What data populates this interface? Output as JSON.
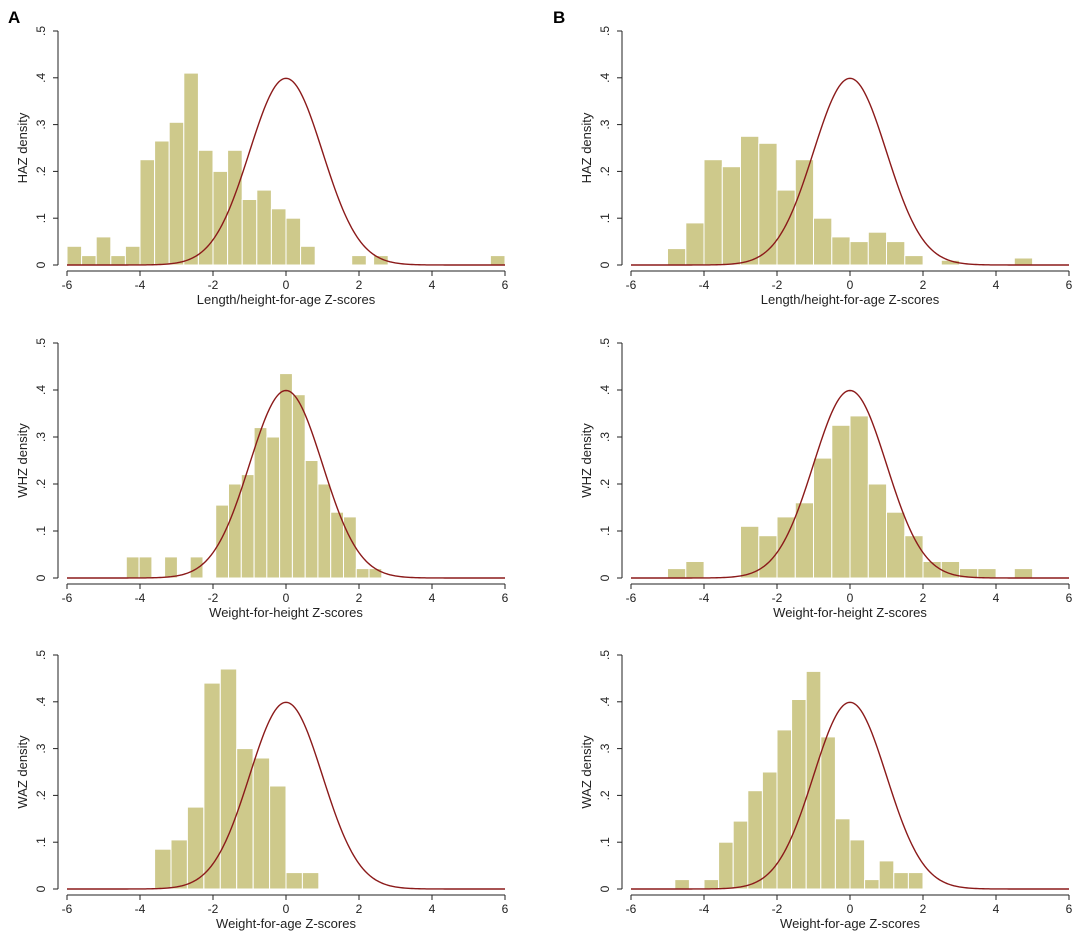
{
  "panel_labels": [
    "A",
    "B"
  ],
  "colors": {
    "bar_fill": "#CEC98B",
    "bar_stroke": "#ffffff",
    "curve": "#8B1A1A",
    "axis": "#222222"
  },
  "chart_data": [
    {
      "type": "bar",
      "panel": "A",
      "row": 0,
      "xlabel": "Length/height-for-age Z-scores",
      "ylabel": "HAZ density",
      "xlim": [
        -6,
        6
      ],
      "ylim": [
        0,
        0.5
      ],
      "xticks": [
        -6,
        -4,
        -2,
        0,
        2,
        4,
        6
      ],
      "yticks": [
        0,
        0.1,
        0.2,
        0.3,
        0.4,
        0.5
      ],
      "ytick_labels": [
        "0",
        ".1",
        ".2",
        ".3",
        ".4",
        ".5"
      ],
      "bin_width": 0.4,
      "bins": [
        [
          -5.8,
          0.04
        ],
        [
          -5.4,
          0.02
        ],
        [
          -5.0,
          0.06
        ],
        [
          -4.6,
          0.02
        ],
        [
          -4.2,
          0.04
        ],
        [
          -3.8,
          0.225
        ],
        [
          -3.4,
          0.265
        ],
        [
          -3.0,
          0.305
        ],
        [
          -2.6,
          0.41
        ],
        [
          -2.2,
          0.245
        ],
        [
          -1.8,
          0.2
        ],
        [
          -1.4,
          0.245
        ],
        [
          -1.0,
          0.14
        ],
        [
          -0.6,
          0.16
        ],
        [
          -0.2,
          0.12
        ],
        [
          0.2,
          0.1
        ],
        [
          0.6,
          0.04
        ],
        [
          2.0,
          0.02
        ],
        [
          2.6,
          0.02
        ],
        [
          5.8,
          0.02
        ]
      ],
      "curve": {
        "name": "normal density",
        "mean": 0,
        "sd": 1
      }
    },
    {
      "type": "bar",
      "panel": "B",
      "row": 0,
      "xlabel": "Length/height-for-age Z-scores",
      "ylabel": "HAZ density",
      "xlim": [
        -6,
        6
      ],
      "ylim": [
        0,
        0.5
      ],
      "xticks": [
        -6,
        -4,
        -2,
        0,
        2,
        4,
        6
      ],
      "yticks": [
        0,
        0.1,
        0.2,
        0.3,
        0.4,
        0.5
      ],
      "ytick_labels": [
        "0",
        ".1",
        ".2",
        ".3",
        ".4",
        ".5"
      ],
      "bin_width": 0.5,
      "bins": [
        [
          -4.75,
          0.035
        ],
        [
          -4.25,
          0.09
        ],
        [
          -3.75,
          0.225
        ],
        [
          -3.25,
          0.21
        ],
        [
          -2.75,
          0.275
        ],
        [
          -2.25,
          0.26
        ],
        [
          -1.75,
          0.16
        ],
        [
          -1.25,
          0.225
        ],
        [
          -0.75,
          0.1
        ],
        [
          -0.25,
          0.06
        ],
        [
          0.25,
          0.05
        ],
        [
          0.75,
          0.07
        ],
        [
          1.25,
          0.05
        ],
        [
          1.75,
          0.02
        ],
        [
          2.75,
          0.01
        ],
        [
          4.75,
          0.015
        ]
      ],
      "curve": {
        "name": "normal density",
        "mean": 0,
        "sd": 1
      }
    },
    {
      "type": "bar",
      "panel": "A",
      "row": 1,
      "xlabel": "Weight-for-height Z-scores",
      "ylabel": "WHZ density",
      "xlim": [
        -6,
        6
      ],
      "ylim": [
        0,
        0.5
      ],
      "xticks": [
        -6,
        -4,
        -2,
        0,
        2,
        4,
        6
      ],
      "yticks": [
        0,
        0.1,
        0.2,
        0.3,
        0.4,
        0.5
      ],
      "ytick_labels": [
        "0",
        ".1",
        ".2",
        ".3",
        ".4",
        ".5"
      ],
      "bin_width": 0.35,
      "bins": [
        [
          -4.2,
          0.045
        ],
        [
          -3.85,
          0.045
        ],
        [
          -3.15,
          0.045
        ],
        [
          -2.45,
          0.045
        ],
        [
          -1.75,
          0.155
        ],
        [
          -1.4,
          0.2
        ],
        [
          -1.05,
          0.22
        ],
        [
          -0.7,
          0.32
        ],
        [
          -0.35,
          0.3
        ],
        [
          0.0,
          0.435
        ],
        [
          0.35,
          0.39
        ],
        [
          0.7,
          0.25
        ],
        [
          1.05,
          0.2
        ],
        [
          1.4,
          0.14
        ],
        [
          1.75,
          0.13
        ],
        [
          2.1,
          0.02
        ],
        [
          2.45,
          0.02
        ]
      ],
      "curve": {
        "name": "normal density",
        "mean": 0,
        "sd": 1
      }
    },
    {
      "type": "bar",
      "panel": "B",
      "row": 1,
      "xlabel": "Weight-for-height Z-scores",
      "ylabel": "WHZ density",
      "xlim": [
        -6,
        6
      ],
      "ylim": [
        0,
        0.5
      ],
      "xticks": [
        -6,
        -4,
        -2,
        0,
        2,
        4,
        6
      ],
      "yticks": [
        0,
        0.1,
        0.2,
        0.3,
        0.4,
        0.5
      ],
      "ytick_labels": [
        "0",
        ".1",
        ".2",
        ".3",
        ".4",
        ".5"
      ],
      "bin_width": 0.5,
      "bins": [
        [
          -4.75,
          0.02
        ],
        [
          -4.25,
          0.035
        ],
        [
          -2.75,
          0.11
        ],
        [
          -2.25,
          0.09
        ],
        [
          -1.75,
          0.13
        ],
        [
          -1.25,
          0.16
        ],
        [
          -0.75,
          0.255
        ],
        [
          -0.25,
          0.325
        ],
        [
          0.25,
          0.345
        ],
        [
          0.75,
          0.2
        ],
        [
          1.25,
          0.14
        ],
        [
          1.75,
          0.09
        ],
        [
          2.25,
          0.035
        ],
        [
          2.75,
          0.035
        ],
        [
          3.25,
          0.02
        ],
        [
          3.75,
          0.02
        ],
        [
          4.75,
          0.02
        ]
      ],
      "curve": {
        "name": "normal density",
        "mean": 0,
        "sd": 1
      }
    },
    {
      "type": "bar",
      "panel": "A",
      "row": 2,
      "xlabel": "Weight-for-age Z-scores",
      "ylabel": "WAZ density",
      "xlim": [
        -6,
        6
      ],
      "ylim": [
        0,
        0.5
      ],
      "xticks": [
        -6,
        -4,
        -2,
        0,
        2,
        4,
        6
      ],
      "yticks": [
        0,
        0.1,
        0.2,
        0.3,
        0.4,
        0.5
      ],
      "ytick_labels": [
        "0",
        ".1",
        ".2",
        ".3",
        ".4",
        ".5"
      ],
      "bin_width": 0.45,
      "bins": [
        [
          -3.375,
          0.085
        ],
        [
          -2.925,
          0.105
        ],
        [
          -2.475,
          0.175
        ],
        [
          -2.025,
          0.44
        ],
        [
          -1.575,
          0.47
        ],
        [
          -1.125,
          0.3
        ],
        [
          -0.675,
          0.28
        ],
        [
          -0.225,
          0.22
        ],
        [
          0.225,
          0.035
        ],
        [
          0.675,
          0.035
        ]
      ],
      "curve": {
        "name": "normal density",
        "mean": 0,
        "sd": 1
      }
    },
    {
      "type": "bar",
      "panel": "B",
      "row": 2,
      "xlabel": "Weight-for-age Z-scores",
      "ylabel": "WAZ density",
      "xlim": [
        -6,
        6
      ],
      "ylim": [
        0,
        0.5
      ],
      "xticks": [
        -6,
        -4,
        -2,
        0,
        2,
        4,
        6
      ],
      "yticks": [
        0,
        0.1,
        0.2,
        0.3,
        0.4,
        0.5
      ],
      "ytick_labels": [
        "0",
        ".1",
        ".2",
        ".3",
        ".4",
        ".5"
      ],
      "bin_width": 0.4,
      "bins": [
        [
          -4.6,
          0.02
        ],
        [
          -3.8,
          0.02
        ],
        [
          -3.4,
          0.1
        ],
        [
          -3.0,
          0.145
        ],
        [
          -2.6,
          0.21
        ],
        [
          -2.2,
          0.25
        ],
        [
          -1.8,
          0.34
        ],
        [
          -1.4,
          0.405
        ],
        [
          -1.0,
          0.465
        ],
        [
          -0.6,
          0.325
        ],
        [
          -0.2,
          0.15
        ],
        [
          0.2,
          0.105
        ],
        [
          0.6,
          0.02
        ],
        [
          1.0,
          0.06
        ],
        [
          1.4,
          0.035
        ],
        [
          1.8,
          0.035
        ]
      ],
      "curve": {
        "name": "normal density",
        "mean": 0,
        "sd": 1
      }
    }
  ]
}
